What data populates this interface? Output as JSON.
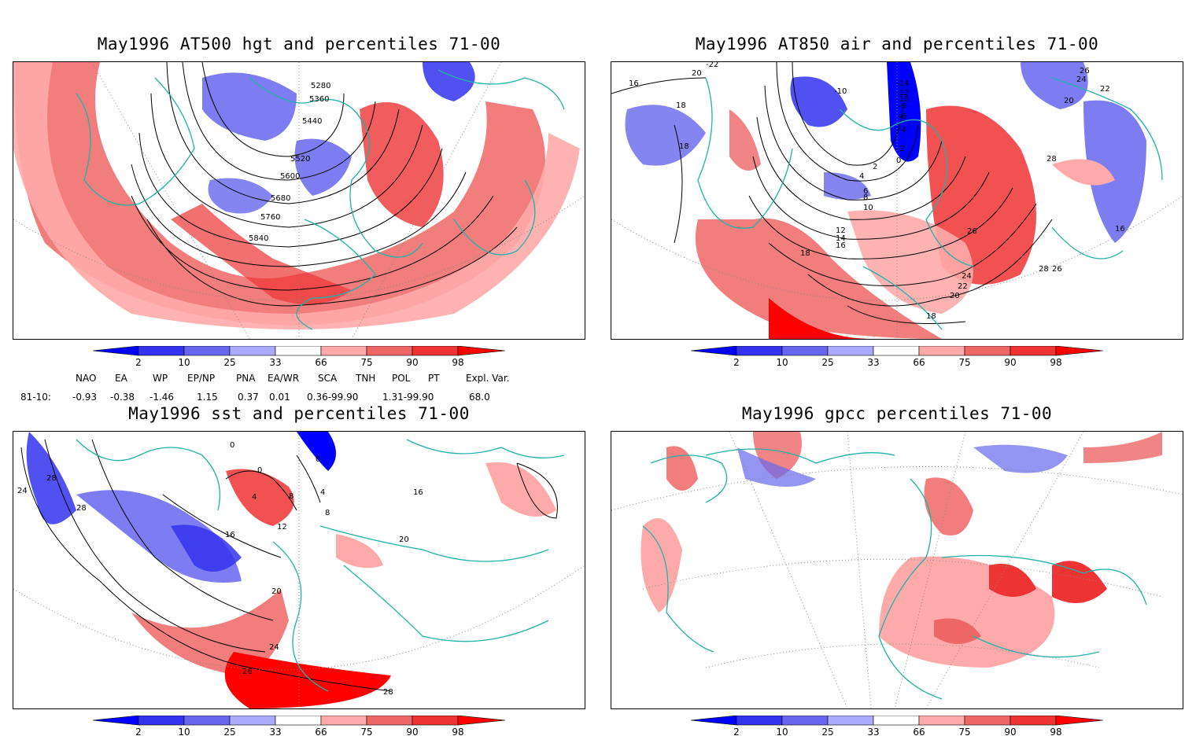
{
  "panels": [
    {
      "title": "May1996 AT500 hgt and percentiles 71-00",
      "contour_labels": [
        "5280",
        "5360",
        "5440",
        "5520",
        "5600",
        "5680",
        "5760",
        "5840"
      ]
    },
    {
      "title": "May1996 AT850 air and percentiles 71-00",
      "contour_labels": [
        "-22",
        "16",
        "20",
        "18",
        "18",
        "-10",
        "-14",
        "-12",
        "-10",
        "-8",
        "-6",
        "-4",
        "-2",
        "0",
        "2",
        "4",
        "6",
        "8",
        "10",
        "12",
        "14",
        "16",
        "18",
        "28",
        "26",
        "24",
        "22",
        "20",
        "18",
        "26",
        "24",
        "22",
        "20",
        "28",
        "26",
        "16"
      ]
    },
    {
      "title": "May1996 sst and percentiles 71-00",
      "contour_labels": [
        "28",
        "24",
        "28",
        "0",
        "0",
        "0",
        "4",
        "8",
        "4",
        "8",
        "12",
        "16",
        "20",
        "24",
        "26",
        "28",
        "16",
        "20"
      ]
    },
    {
      "title": "May1996 gpcc percentiles 71-00",
      "contour_labels": []
    }
  ],
  "colorbar": {
    "labels": [
      "2",
      "10",
      "25",
      "33",
      "66",
      "75",
      "90",
      "98"
    ],
    "colors": {
      "below2": "#0000ff",
      "c2_10": "#3333ee",
      "c10_25": "#6666ee",
      "c25_33": "#aaaaff",
      "c66_75": "#ffaaaa",
      "c75_90": "#ee6666",
      "c90_98": "#ee3333",
      "above98": "#ff0000"
    }
  },
  "teleconnections": {
    "headers": [
      "NAO",
      "EA",
      "WP",
      "EP/NP",
      "PNA",
      "EA/WR",
      "SCA",
      "TNH",
      "POL",
      "PT",
      "Expl. Var."
    ],
    "row_label": "81-10:",
    "values": [
      "-0.93",
      "-0.38",
      "-1.46",
      "1.15",
      "0.37",
      "0.01",
      "0.36-99.90",
      "",
      "1.31-99.90",
      "",
      "68.0"
    ]
  },
  "map_colors": {
    "coast": "#20b2aa",
    "contour": "#000000",
    "grid": "#888888"
  }
}
